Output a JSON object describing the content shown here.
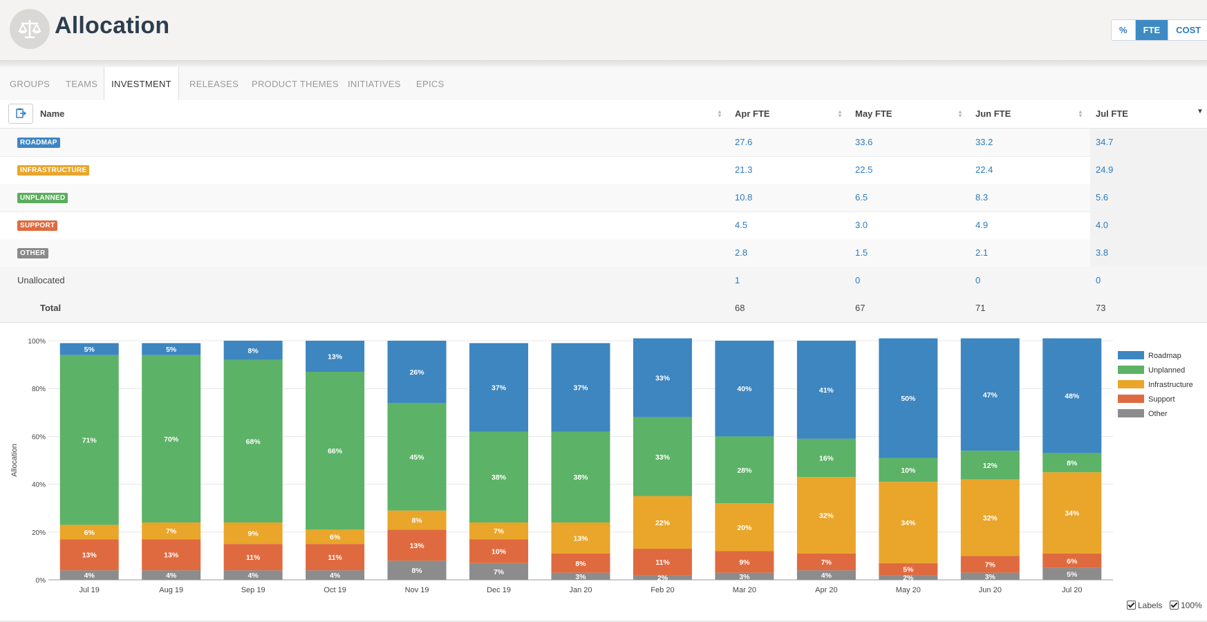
{
  "header": {
    "title": "Allocation",
    "toggle": [
      {
        "label": "%",
        "active": false
      },
      {
        "label": "FTE",
        "active": true
      },
      {
        "label": "COST",
        "active": false
      }
    ]
  },
  "tabs": [
    {
      "label": "GROUPS",
      "active": false
    },
    {
      "label": "TEAMS",
      "active": false
    },
    {
      "label": "INVESTMENT",
      "active": true
    },
    {
      "label": "RELEASES",
      "active": false
    },
    {
      "label": "PRODUCT THEMES",
      "active": false
    },
    {
      "label": "INITIATIVES",
      "active": false
    },
    {
      "label": "EPICS",
      "active": false
    }
  ],
  "table": {
    "columns": [
      "Name",
      "Apr FTE",
      "May FTE",
      "Jun FTE",
      "Jul FTE"
    ],
    "rows": [
      {
        "name": "ROADMAP",
        "badge": true,
        "color": "#3d86c4",
        "values": [
          "27.6",
          "33.6",
          "33.2",
          "34.7"
        ]
      },
      {
        "name": "INFRASTRUCTURE",
        "badge": true,
        "color": "#e9a62b",
        "values": [
          "21.3",
          "22.5",
          "22.4",
          "24.9"
        ]
      },
      {
        "name": "UNPLANNED",
        "badge": true,
        "color": "#5cae5e",
        "values": [
          "10.8",
          "6.5",
          "8.3",
          "5.6"
        ]
      },
      {
        "name": "SUPPORT",
        "badge": true,
        "color": "#e06a3f",
        "values": [
          "4.5",
          "3.0",
          "4.9",
          "4.0"
        ]
      },
      {
        "name": "OTHER",
        "badge": true,
        "color": "#8a8a8a",
        "values": [
          "2.8",
          "1.5",
          "2.1",
          "3.8"
        ]
      },
      {
        "name": "Unallocated",
        "badge": false,
        "color": "",
        "values": [
          "1",
          "0",
          "0",
          "0"
        ]
      }
    ],
    "total": {
      "label": "Total",
      "values": [
        "68",
        "67",
        "71",
        "73"
      ]
    }
  },
  "chart_data": {
    "type": "bar",
    "stacked": true,
    "ylabel": "Allocation",
    "ylim": [
      0,
      100
    ],
    "yticks": [
      "0%",
      "20%",
      "40%",
      "60%",
      "80%",
      "100%"
    ],
    "categories": [
      "Jul 19",
      "Aug 19",
      "Sep 19",
      "Oct 19",
      "Nov 19",
      "Dec 19",
      "Jan 20",
      "Feb 20",
      "Mar 20",
      "Apr 20",
      "May 20",
      "Jun 20",
      "Jul 20"
    ],
    "series": [
      {
        "name": "Other",
        "color": "#8c8c8c",
        "values": [
          4,
          4,
          4,
          4,
          8,
          7,
          3,
          2,
          3,
          4,
          2,
          3,
          5
        ]
      },
      {
        "name": "Support",
        "color": "#e06a3f",
        "values": [
          13,
          13,
          11,
          11,
          13,
          10,
          8,
          11,
          9,
          7,
          5,
          7,
          6
        ]
      },
      {
        "name": "Infrastructure",
        "color": "#e9a62b",
        "values": [
          6,
          7,
          9,
          6,
          8,
          7,
          13,
          22,
          20,
          32,
          34,
          32,
          34
        ]
      },
      {
        "name": "Unplanned",
        "color": "#5cb266",
        "values": [
          71,
          70,
          68,
          66,
          45,
          38,
          38,
          33,
          28,
          16,
          10,
          12,
          8
        ]
      },
      {
        "name": "Roadmap",
        "color": "#3d86c0",
        "values": [
          5,
          5,
          8,
          13,
          26,
          37,
          37,
          33,
          40,
          41,
          50,
          47,
          48
        ]
      }
    ],
    "legend_order": [
      "Roadmap",
      "Unplanned",
      "Infrastructure",
      "Support",
      "Other"
    ],
    "legend_position": "right"
  },
  "footer": {
    "labels_checkbox": "Labels",
    "percent_checkbox": "100%"
  }
}
